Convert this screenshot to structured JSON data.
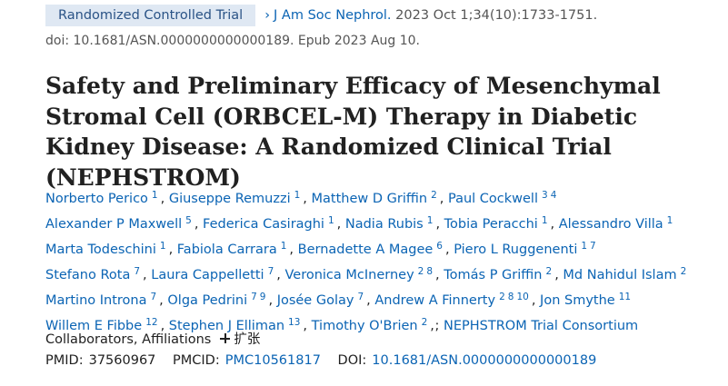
{
  "header": {
    "badge": "Randomized Controlled Trial",
    "journal": "J Am Soc Nephrol.",
    "citation": "2023 Oct 1;34(10):1733-1751.",
    "doi_line": "doi: 10.1681/ASN.0000000000000189. Epub 2023 Aug 10."
  },
  "title": "Safety and Preliminary Efficacy of Mesenchymal Stromal Cell (ORBCEL-M) Therapy in Diabetic Kidney Disease: A Randomized Clinical Trial (NEPHSTROM)",
  "author_lines": [
    [
      {
        "name": "Norberto Perico",
        "aff": [
          1
        ]
      },
      {
        "name": "Giuseppe Remuzzi",
        "aff": [
          1
        ]
      },
      {
        "name": "Matthew D Griffin",
        "aff": [
          2
        ]
      },
      {
        "name": "Paul Cockwell",
        "aff": [
          3,
          4
        ]
      }
    ],
    [
      {
        "name": "Alexander P Maxwell",
        "aff": [
          5
        ]
      },
      {
        "name": "Federica Casiraghi",
        "aff": [
          1
        ]
      },
      {
        "name": "Nadia Rubis",
        "aff": [
          1
        ]
      },
      {
        "name": "Tobia Peracchi",
        "aff": [
          1
        ]
      },
      {
        "name": "Alessandro Villa",
        "aff": [
          1
        ]
      }
    ],
    [
      {
        "name": "Marta Todeschini",
        "aff": [
          1
        ]
      },
      {
        "name": "Fabiola Carrara",
        "aff": [
          1
        ]
      },
      {
        "name": "Bernadette A Magee",
        "aff": [
          6
        ]
      },
      {
        "name": "Piero L Ruggenenti",
        "aff": [
          1,
          7
        ]
      }
    ],
    [
      {
        "name": "Stefano Rota",
        "aff": [
          7
        ]
      },
      {
        "name": "Laura Cappelletti",
        "aff": [
          7
        ]
      },
      {
        "name": "Veronica McInerney",
        "aff": [
          2,
          8
        ]
      },
      {
        "name": "Tomás P Griffin",
        "aff": [
          2
        ]
      },
      {
        "name": "Md Nahidul Islam",
        "aff": [
          2
        ]
      }
    ],
    [
      {
        "name": "Martino Introna",
        "aff": [
          7
        ]
      },
      {
        "name": "Olga Pedrini",
        "aff": [
          7,
          9
        ]
      },
      {
        "name": "Josée Golay",
        "aff": [
          7
        ]
      },
      {
        "name": "Andrew A Finnerty",
        "aff": [
          2,
          8,
          10
        ]
      },
      {
        "name": "Jon Smythe",
        "aff": [
          11
        ]
      }
    ],
    [
      {
        "name": "Willem E Fibbe",
        "aff": [
          12
        ]
      },
      {
        "name": "Stephen J Elliman",
        "aff": [
          13
        ]
      },
      {
        "name": "Timothy O'Brien",
        "aff": [
          2
        ]
      }
    ]
  ],
  "consortium": "NEPHSTROM Trial Consortium",
  "collaborators": {
    "label": "Collaborators, Affiliations",
    "expand": "扩张"
  },
  "ids": {
    "pmid_label": "PMID:",
    "pmid": "37560967",
    "pmcid_label": "PMCID:",
    "pmcid": "PMC10561817",
    "doi_label": "DOI:",
    "doi": "10.1681/ASN.0000000000000189"
  }
}
